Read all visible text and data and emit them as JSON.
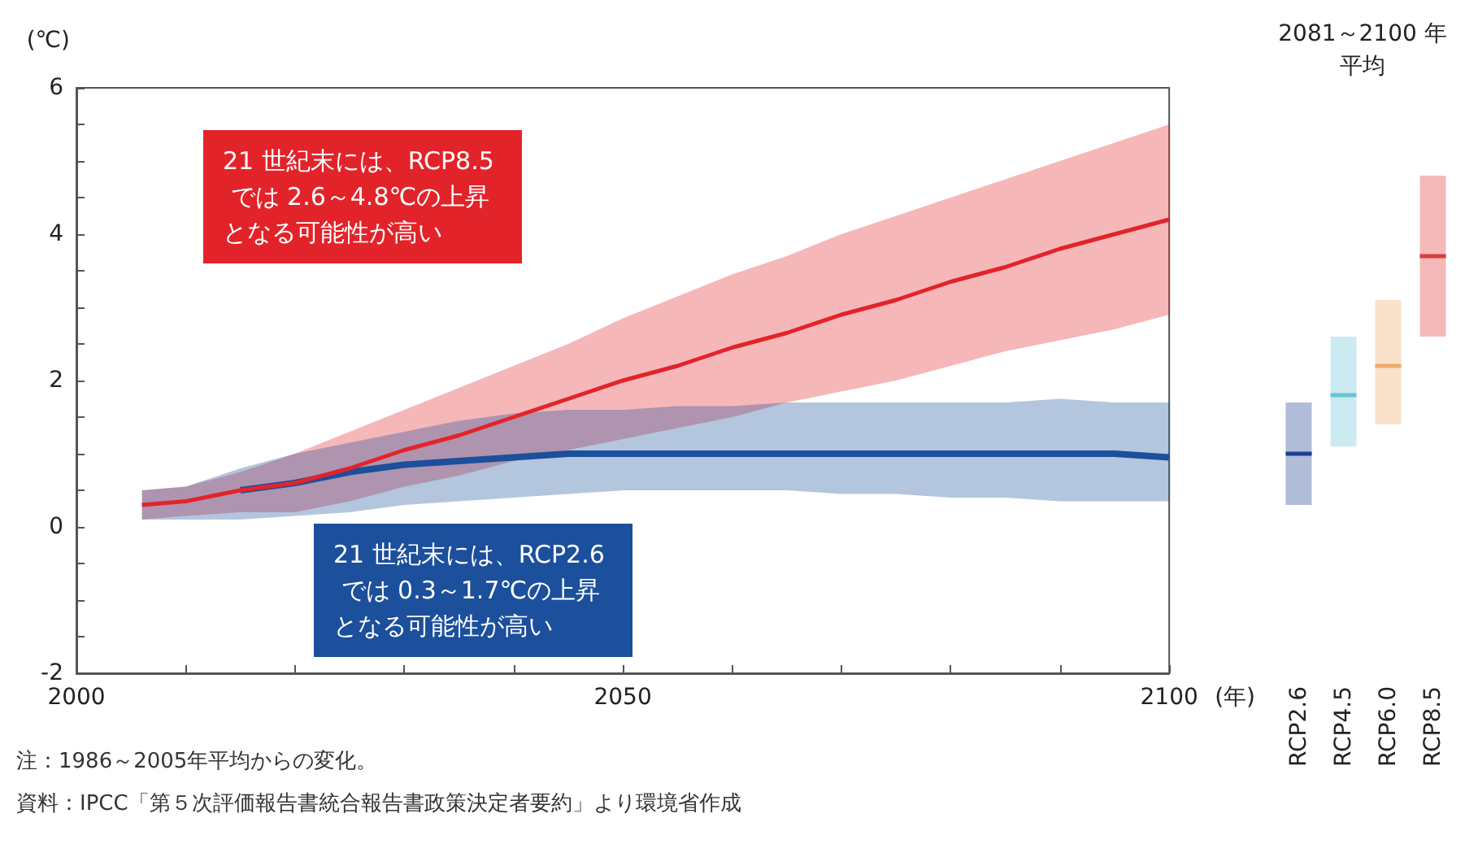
{
  "chart_data": [
    {
      "type": "line",
      "ylabel": "(℃)",
      "xlabel": "(年)",
      "xlim": [
        2000,
        2100
      ],
      "xticks": [
        2000,
        {
          "value": 2010,
          "label": null
        },
        {
          "value": 2020,
          "label": null
        },
        {
          "value": 2030,
          "label": null
        },
        {
          "value": 2040,
          "label": null
        },
        2050,
        {
          "value": 2060,
          "label": null
        },
        {
          "value": 2070,
          "label": null
        },
        {
          "value": 2080,
          "label": null
        },
        {
          "value": 2090,
          "label": null
        },
        2100
      ],
      "ylim": [
        -2,
        6
      ],
      "yticks": [
        -2,
        {
          "value": -1.5,
          "label": null
        },
        {
          "value": -1,
          "label": null
        },
        {
          "value": -0.5,
          "label": null
        },
        0,
        {
          "value": 0.5,
          "label": null
        },
        {
          "value": 1,
          "label": null
        },
        {
          "value": 1.5,
          "label": null
        },
        2,
        {
          "value": 2.5,
          "label": null
        },
        {
          "value": 3,
          "label": null
        },
        {
          "value": 3.5,
          "label": null
        },
        4,
        {
          "value": 4.5,
          "label": null
        },
        {
          "value": 5,
          "label": null
        },
        {
          "value": 5.5,
          "label": null
        },
        6
      ],
      "grid": false,
      "x": [
        2006,
        2010,
        2015,
        2020,
        2025,
        2030,
        2035,
        2040,
        2045,
        2050,
        2055,
        2060,
        2065,
        2070,
        2075,
        2080,
        2085,
        2090,
        2095,
        2100
      ],
      "series": [
        {
          "color": "#e3232a",
          "values": [
            0.3,
            0.35,
            0.5,
            0.6,
            0.8,
            1.05,
            1.25,
            1.5,
            1.75,
            2.0,
            2.2,
            2.45,
            2.65,
            2.9,
            3.1,
            3.35,
            3.55,
            3.8,
            4.0,
            4.2
          ],
          "upper": [
            0.5,
            0.55,
            0.75,
            1.0,
            1.3,
            1.6,
            1.9,
            2.2,
            2.5,
            2.85,
            3.15,
            3.45,
            3.7,
            4.0,
            4.25,
            4.5,
            4.75,
            5.0,
            5.25,
            5.5
          ],
          "lower": [
            0.1,
            0.15,
            0.2,
            0.2,
            0.35,
            0.55,
            0.7,
            0.9,
            1.05,
            1.2,
            1.35,
            1.5,
            1.7,
            1.85,
            2.0,
            2.2,
            2.4,
            2.55,
            2.7,
            2.9
          ]
        },
        {
          "color": "#1c4f9c",
          "values": [
            null,
            null,
            0.5,
            0.6,
            0.75,
            0.85,
            0.9,
            0.95,
            1.0,
            1.0,
            1.0,
            1.0,
            1.0,
            1.0,
            1.0,
            1.0,
            1.0,
            1.0,
            1.0,
            0.95
          ],
          "upper": [
            0.5,
            0.55,
            0.8,
            1.0,
            1.15,
            1.3,
            1.45,
            1.55,
            1.6,
            1.6,
            1.65,
            1.65,
            1.7,
            1.7,
            1.7,
            1.7,
            1.7,
            1.75,
            1.7,
            1.7
          ],
          "lower": [
            0.1,
            0.1,
            0.1,
            0.15,
            0.2,
            0.3,
            0.35,
            0.4,
            0.45,
            0.5,
            0.5,
            0.5,
            0.5,
            0.45,
            0.45,
            0.4,
            0.4,
            0.35,
            0.35,
            0.35
          ]
        }
      ],
      "annotations": [
        "21 世紀末には、RCP8.5 では 2.6～4.8℃の上昇となる可能性が高い",
        "21 世紀末には、RCP2.6 では 0.3～1.7℃の上昇となる可能性が高い",
        "注：1986～2005年平均からの変化。",
        "資料：IPCC「第５次評価報告書統合報告書政策決定者要約」より環境省作成"
      ]
    },
    {
      "type": "box",
      "title": "2081～2100 年平均",
      "categories": [
        "RCP2.6",
        "RCP4.5",
        "RCP6.0",
        "RCP8.5"
      ],
      "ylim": [
        -2,
        6
      ],
      "tick_labels": "x",
      "boxes": [
        {
          "low": 0.3,
          "q1": 0.3,
          "median": 1.0,
          "q3": 1.7,
          "high": 1.7
        },
        {
          "low": 1.1,
          "q1": 1.1,
          "median": 1.8,
          "q3": 2.6,
          "high": 2.6
        },
        {
          "low": 1.4,
          "q1": 1.4,
          "median": 2.2,
          "q3": 3.1,
          "high": 3.1
        },
        {
          "low": 2.6,
          "q1": 2.6,
          "median": 3.7,
          "q3": 4.8,
          "high": 4.8
        }
      ],
      "colors": [
        "#1c3f8f",
        "#6cc3d6",
        "#eeaa66",
        "#e03a3a"
      ]
    }
  ]
}
